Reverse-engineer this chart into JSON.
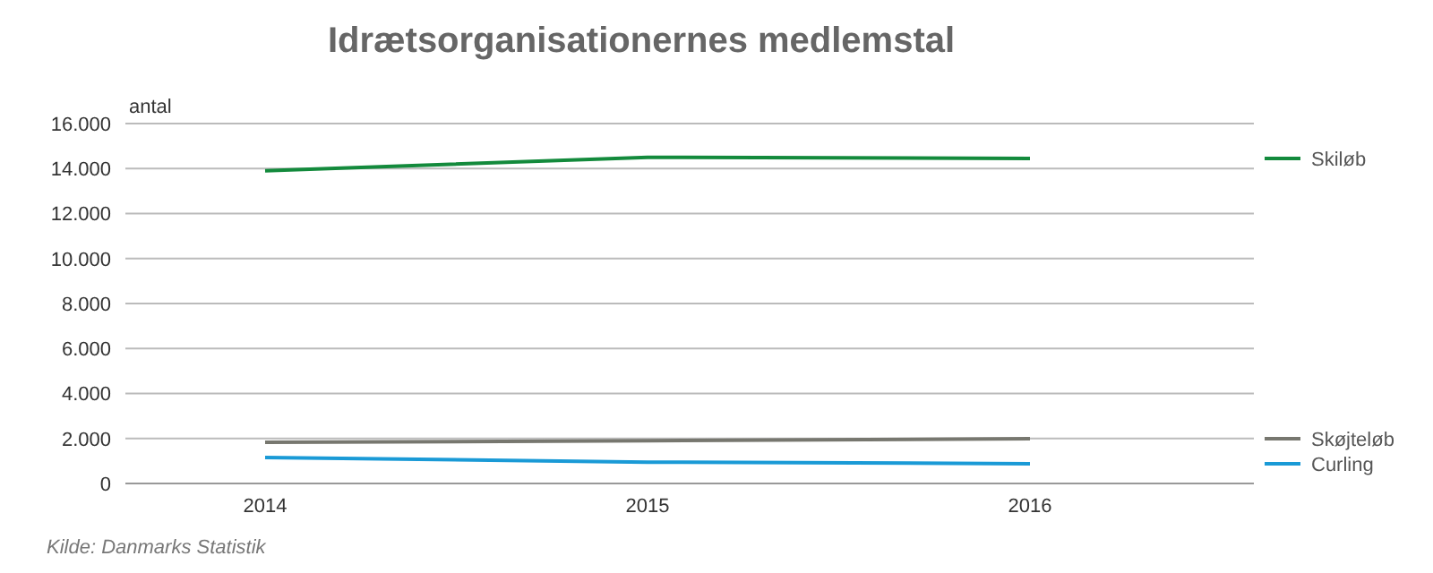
{
  "chart_data": {
    "type": "line",
    "title": "Idrætsorganisationernes medlemstal",
    "ylabel": "antal",
    "categories": [
      "2014",
      "2015",
      "2016"
    ],
    "series": [
      {
        "name": "Skiløb",
        "color": "#138a3c",
        "values": [
          13900,
          14500,
          14450
        ]
      },
      {
        "name": "Skøjteløb",
        "color": "#77776f",
        "values": [
          1830,
          1900,
          1990
        ]
      },
      {
        "name": "Curling",
        "color": "#1a9ad6",
        "values": [
          1150,
          950,
          880
        ]
      }
    ],
    "ylim": [
      0,
      16000
    ],
    "yticks": [
      {
        "value": 0,
        "label": "0"
      },
      {
        "value": 2000,
        "label": "2.000"
      },
      {
        "value": 4000,
        "label": "4.000"
      },
      {
        "value": 6000,
        "label": "6.000"
      },
      {
        "value": 8000,
        "label": "8.000"
      },
      {
        "value": 10000,
        "label": "10.000"
      },
      {
        "value": 12000,
        "label": "12.000"
      },
      {
        "value": 14000,
        "label": "14.000"
      },
      {
        "value": 16000,
        "label": "16.000"
      }
    ],
    "grid": "y",
    "legend": "right",
    "marker": "none",
    "line_style": "solid",
    "annotations": [
      "Kilde: Danmarks Statistik"
    ]
  }
}
